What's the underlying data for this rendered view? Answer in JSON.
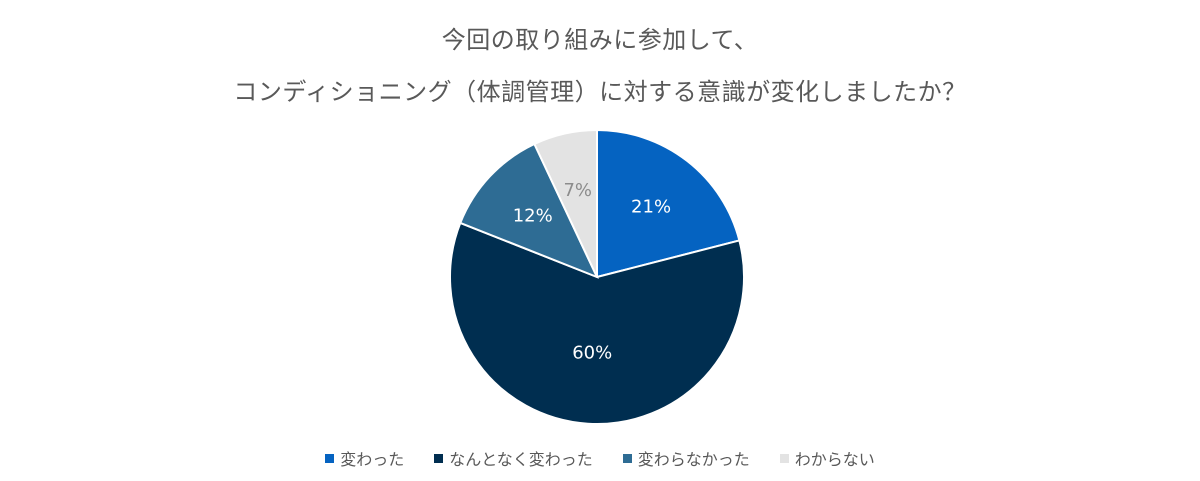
{
  "chart_data": {
    "type": "pie",
    "title_lines": [
      "今回の取り組みに参加して、",
      "コンディショニング（体調管理）に対する意識が変化しましたか？"
    ],
    "categories": [
      "変わった",
      "なんとなく変わった",
      "変わらなかった",
      "わからない"
    ],
    "values": [
      21,
      60,
      12,
      7
    ],
    "labels": [
      "21%",
      "60%",
      "12%",
      "7%"
    ],
    "colors": [
      "#0563C1",
      "#002E50",
      "#2E6C94",
      "#E3E3E3"
    ],
    "label_colors": [
      "#FFFFFF",
      "#FFFFFF",
      "#FFFFFF",
      "#8C8C8C"
    ],
    "legend_position": "bottom"
  }
}
